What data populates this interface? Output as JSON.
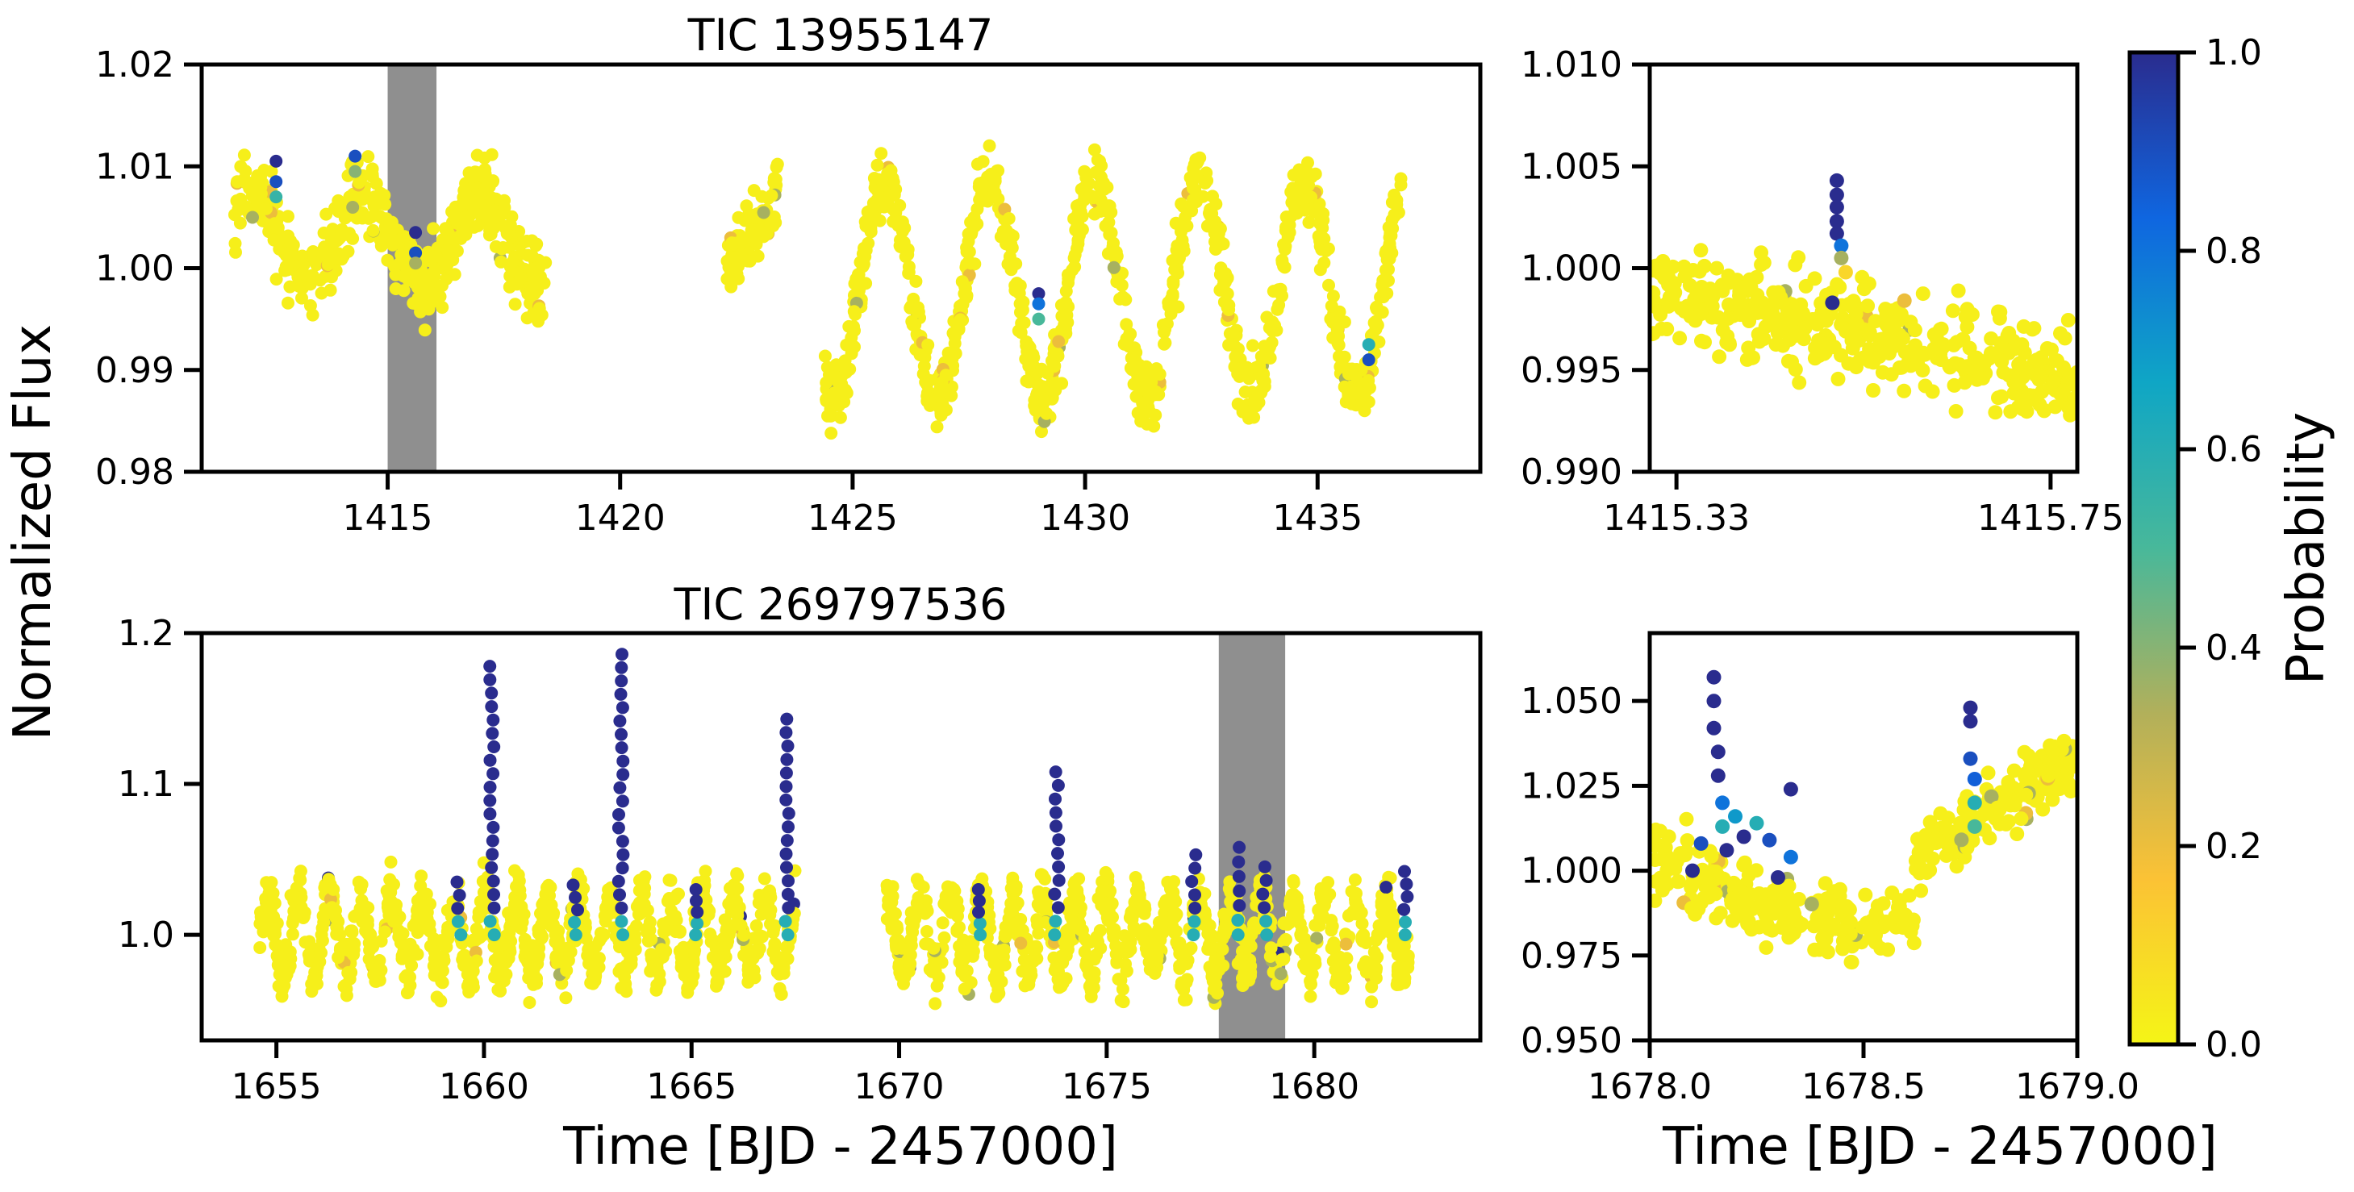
{
  "figure": {
    "ylabel": "Normalized Flux",
    "xlabel": "Time [BJD - 2457000]",
    "colorbar": {
      "label": "Probability",
      "ticks": [
        "0.0",
        "0.2",
        "0.4",
        "0.6",
        "0.8",
        "1.0"
      ],
      "colors": [
        "#f5f516",
        "#fbc235",
        "#b2b05a",
        "#48b89a",
        "#0fa6c5",
        "#0f66e0",
        "#2a2c8e"
      ]
    }
  },
  "chart_data": [
    {
      "id": "tl",
      "type": "scatter",
      "title": "TIC 13955147",
      "xlim": [
        1411,
        1438.5
      ],
      "ylim": [
        0.98,
        1.02
      ],
      "xticks": [
        1415,
        1420,
        1425,
        1430,
        1435
      ],
      "xtick_labels": [
        "1415",
        "1420",
        "1425",
        "1430",
        "1435"
      ],
      "yticks": [
        0.98,
        0.99,
        1.0,
        1.01,
        1.02
      ],
      "ytick_labels": [
        "0.98",
        "0.99",
        "1.00",
        "1.01",
        "1.02"
      ],
      "highlight_band": [
        1415.0,
        1416.05
      ],
      "segments": [
        {
          "x_start": 1411.7,
          "x_end": 1418.4,
          "base": 1.003,
          "amplitude": 0.0045,
          "period": 2.45,
          "phase": 0.6,
          "trend": -0.00028,
          "scatter": 0.002
        },
        {
          "x_start": 1422.3,
          "x_end": 1423.4,
          "base": 1.0,
          "amplitude": 0.0,
          "period": 1.0,
          "phase": 0.0,
          "trend": 0.0075,
          "scatter": 0.0015
        },
        {
          "x_start": 1424.4,
          "x_end": 1436.8,
          "base": 0.998,
          "amplitude": 0.0105,
          "period": 2.25,
          "phase": 4.2,
          "trend": 0.0,
          "scatter": 0.0016
        }
      ],
      "flagged_points": [
        {
          "x": 1412.6,
          "y": 1.0105,
          "p": 1.0
        },
        {
          "x": 1412.6,
          "y": 1.0085,
          "p": 0.9
        },
        {
          "x": 1412.6,
          "y": 1.007,
          "p": 0.55
        },
        {
          "x": 1414.3,
          "y": 1.011,
          "p": 0.9
        },
        {
          "x": 1414.3,
          "y": 1.0095,
          "p": 0.4
        },
        {
          "x": 1415.6,
          "y": 1.0035,
          "p": 1.0
        },
        {
          "x": 1415.6,
          "y": 1.0015,
          "p": 0.9
        },
        {
          "x": 1415.6,
          "y": 1.0005,
          "p": 0.35
        },
        {
          "x": 1429.0,
          "y": 0.9975,
          "p": 1.0
        },
        {
          "x": 1429.0,
          "y": 0.9965,
          "p": 0.8
        },
        {
          "x": 1429.0,
          "y": 0.995,
          "p": 0.5
        },
        {
          "x": 1436.1,
          "y": 0.9925,
          "p": 0.6
        },
        {
          "x": 1436.1,
          "y": 0.991,
          "p": 0.9
        }
      ]
    },
    {
      "id": "tr",
      "type": "scatter",
      "xlim": [
        1415.3,
        1415.78
      ],
      "ylim": [
        0.99,
        1.01
      ],
      "xticks": [
        1415.33,
        1415.75
      ],
      "xtick_labels": [
        "1415.33",
        "1415.75"
      ],
      "yticks": [
        0.99,
        0.995,
        1.0,
        1.005,
        1.01
      ],
      "ytick_labels": [
        "0.990",
        "0.995",
        "1.000",
        "1.005",
        "1.010"
      ],
      "segments": [
        {
          "x_start": 1415.3,
          "x_end": 1415.78,
          "base": 0.9991,
          "amplitude": 0.0,
          "period": 1.0,
          "phase": 0.0,
          "trend": -0.0045,
          "scatter": 0.0012
        }
      ],
      "flagged_points": [
        {
          "x": 1415.51,
          "y": 1.0043,
          "p": 1.0
        },
        {
          "x": 1415.51,
          "y": 1.0036,
          "p": 1.0
        },
        {
          "x": 1415.51,
          "y": 1.003,
          "p": 1.0
        },
        {
          "x": 1415.51,
          "y": 1.0023,
          "p": 1.0
        },
        {
          "x": 1415.51,
          "y": 1.0017,
          "p": 1.0
        },
        {
          "x": 1415.515,
          "y": 1.0011,
          "p": 0.8
        },
        {
          "x": 1415.515,
          "y": 1.0005,
          "p": 0.35
        },
        {
          "x": 1415.52,
          "y": 0.9998,
          "p": 0.1
        },
        {
          "x": 1415.505,
          "y": 0.9983,
          "p": 1.0
        }
      ]
    },
    {
      "id": "bl",
      "type": "scatter",
      "title": "TIC 269797536",
      "xlim": [
        1653.2,
        1684.0
      ],
      "ylim": [
        0.93,
        1.2
      ],
      "xticks": [
        1655,
        1660,
        1665,
        1670,
        1675,
        1680
      ],
      "xtick_labels": [
        "1655",
        "1660",
        "1665",
        "1670",
        "1675",
        "1680"
      ],
      "yticks": [
        1.0,
        1.1,
        1.2
      ],
      "ytick_labels": [
        "1.0",
        "1.1",
        "1.2"
      ],
      "highlight_band": [
        1677.7,
        1679.3
      ],
      "segments": [
        {
          "x_start": 1654.6,
          "x_end": 1667.5,
          "base": 1.0,
          "amplitude": 0.025,
          "period": 0.75,
          "phase": 0.0,
          "trend": 0.0,
          "scatter": 0.009
        },
        {
          "x_start": 1669.7,
          "x_end": 1682.3,
          "base": 1.0,
          "amplitude": 0.025,
          "period": 0.75,
          "phase": 1.2,
          "trend": 0.0,
          "scatter": 0.009
        }
      ],
      "flares": [
        {
          "x": 1660.2,
          "peak": 1.178
        },
        {
          "x": 1663.3,
          "peak": 1.186
        },
        {
          "x": 1667.3,
          "peak": 1.143
        },
        {
          "x": 1673.8,
          "peak": 1.108
        },
        {
          "x": 1659.4,
          "peak": 1.035
        },
        {
          "x": 1662.2,
          "peak": 1.033
        },
        {
          "x": 1665.1,
          "peak": 1.03
        },
        {
          "x": 1671.9,
          "peak": 1.03
        },
        {
          "x": 1677.1,
          "peak": 1.053
        },
        {
          "x": 1678.2,
          "peak": 1.058
        },
        {
          "x": 1678.8,
          "peak": 1.045
        },
        {
          "x": 1682.2,
          "peak": 1.042
        }
      ]
    },
    {
      "id": "br",
      "type": "scatter",
      "xlim": [
        1678.0,
        1679.0
      ],
      "ylim": [
        0.95,
        1.07
      ],
      "xticks": [
        1678.0,
        1678.5,
        1679.0
      ],
      "xtick_labels": [
        "1678.0",
        "1678.5",
        "1679.0"
      ],
      "yticks": [
        0.95,
        0.975,
        1.0,
        1.025,
        1.05
      ],
      "ytick_labels": [
        "0.950",
        "0.975",
        "1.000",
        "1.025",
        "1.050"
      ],
      "segments": [
        {
          "x_start": 1678.0,
          "x_end": 1679.0,
          "base": 1.0,
          "amplitude": 0.0,
          "period": 1.0,
          "phase": 0.0,
          "trend": 0.0,
          "scatter": 0.0055
        }
      ],
      "flagged_points": [
        {
          "x": 1678.15,
          "y": 1.057,
          "p": 1.0
        },
        {
          "x": 1678.15,
          "y": 1.05,
          "p": 1.0
        },
        {
          "x": 1678.15,
          "y": 1.042,
          "p": 1.0
        },
        {
          "x": 1678.16,
          "y": 1.035,
          "p": 1.0
        },
        {
          "x": 1678.16,
          "y": 1.028,
          "p": 1.0
        },
        {
          "x": 1678.17,
          "y": 1.02,
          "p": 0.8
        },
        {
          "x": 1678.17,
          "y": 1.013,
          "p": 0.6
        },
        {
          "x": 1678.18,
          "y": 1.006,
          "p": 1.0
        },
        {
          "x": 1678.12,
          "y": 1.008,
          "p": 0.9
        },
        {
          "x": 1678.1,
          "y": 1.0,
          "p": 1.0
        },
        {
          "x": 1678.2,
          "y": 1.016,
          "p": 0.7
        },
        {
          "x": 1678.22,
          "y": 1.01,
          "p": 1.0
        },
        {
          "x": 1678.25,
          "y": 1.014,
          "p": 0.6
        },
        {
          "x": 1678.28,
          "y": 1.009,
          "p": 0.9
        },
        {
          "x": 1678.33,
          "y": 1.024,
          "p": 1.0
        },
        {
          "x": 1678.33,
          "y": 1.004,
          "p": 0.8
        },
        {
          "x": 1678.3,
          "y": 0.998,
          "p": 1.0
        },
        {
          "x": 1678.75,
          "y": 1.048,
          "p": 1.0
        },
        {
          "x": 1678.75,
          "y": 1.044,
          "p": 1.0
        },
        {
          "x": 1678.75,
          "y": 1.033,
          "p": 0.9
        },
        {
          "x": 1678.76,
          "y": 1.027,
          "p": 0.85
        },
        {
          "x": 1678.76,
          "y": 1.02,
          "p": 0.6
        },
        {
          "x": 1678.76,
          "y": 1.013,
          "p": 0.5
        }
      ]
    }
  ]
}
